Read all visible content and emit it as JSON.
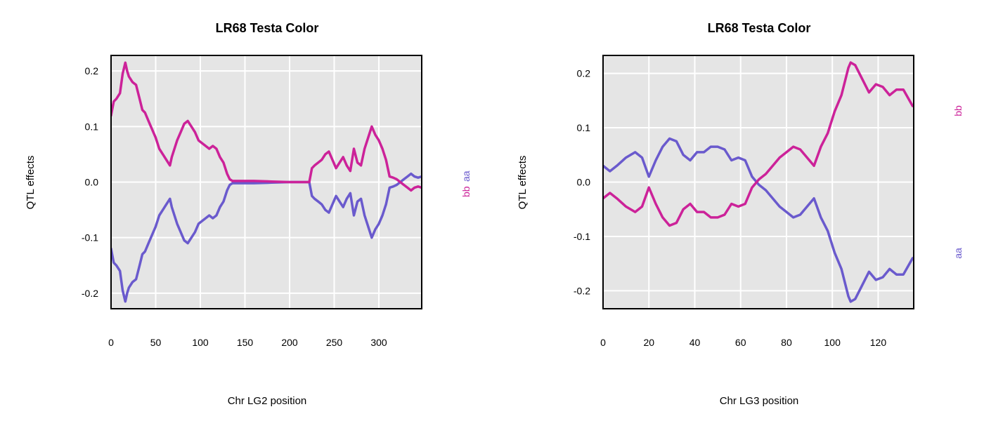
{
  "colors": {
    "bb": "#cc2299",
    "aa": "#6a5acd",
    "panel_bg": "#e5e5e5",
    "grid": "#ffffff"
  },
  "chart_data": [
    {
      "type": "line",
      "title": "LR68 Testa Color",
      "xlabel": "Chr LG2 position",
      "ylabel": "QTL effects",
      "xlim": [
        0,
        348
      ],
      "ylim": [
        -0.228,
        0.228
      ],
      "xticks": [
        0,
        50,
        100,
        150,
        200,
        250,
        300
      ],
      "yticks": [
        -0.2,
        -0.1,
        0.0,
        0.1,
        0.2
      ],
      "xtick_labels": [
        "0",
        "50",
        "100",
        "150",
        "200",
        "250",
        "300"
      ],
      "ytick_labels": [
        "-0.2",
        "-0.1",
        "0.0",
        "0.1",
        "0.2"
      ],
      "grid": true,
      "legend": [
        {
          "label": "bb",
          "color": "#cc2299"
        },
        {
          "label": "aa",
          "color": "#6a5acd"
        }
      ],
      "legend_layout": "stacked",
      "series": [
        {
          "name": "bb",
          "color": "#cc2299",
          "x": [
            0,
            3,
            6,
            10,
            13,
            16,
            18,
            20,
            24,
            28,
            32,
            35,
            38,
            42,
            46,
            50,
            54,
            58,
            62,
            66,
            68,
            71,
            74,
            78,
            82,
            86,
            90,
            94,
            98,
            102,
            106,
            110,
            114,
            118,
            122,
            126,
            130,
            133,
            136,
            140,
            160,
            180,
            200,
            222,
            225,
            228,
            232,
            236,
            240,
            244,
            248,
            252,
            256,
            260,
            264,
            268,
            272,
            276,
            280,
            284,
            288,
            292,
            296,
            300,
            304,
            308,
            312,
            316,
            320,
            324,
            328,
            332,
            336,
            340,
            344,
            348
          ],
          "y": [
            0.12,
            0.145,
            0.15,
            0.16,
            0.195,
            0.215,
            0.2,
            0.19,
            0.18,
            0.175,
            0.15,
            0.13,
            0.125,
            0.11,
            0.095,
            0.08,
            0.06,
            0.05,
            0.04,
            0.03,
            0.045,
            0.06,
            0.075,
            0.09,
            0.105,
            0.11,
            0.1,
            0.09,
            0.075,
            0.07,
            0.065,
            0.06,
            0.065,
            0.06,
            0.045,
            0.035,
            0.015,
            0.005,
            0.002,
            0.002,
            0.002,
            0.001,
            0.0,
            0.0,
            0.025,
            0.03,
            0.035,
            0.04,
            0.05,
            0.055,
            0.04,
            0.025,
            0.035,
            0.045,
            0.03,
            0.02,
            0.06,
            0.035,
            0.03,
            0.06,
            0.08,
            0.1,
            0.085,
            0.075,
            0.06,
            0.04,
            0.01,
            0.008,
            0.005,
            0.0,
            -0.005,
            -0.01,
            -0.015,
            -0.01,
            -0.008,
            -0.01
          ]
        },
        {
          "name": "aa",
          "color": "#6a5acd",
          "x": [
            0,
            3,
            6,
            10,
            13,
            16,
            18,
            20,
            24,
            28,
            32,
            35,
            38,
            42,
            46,
            50,
            54,
            58,
            62,
            66,
            68,
            71,
            74,
            78,
            82,
            86,
            90,
            94,
            98,
            102,
            106,
            110,
            114,
            118,
            122,
            126,
            130,
            133,
            136,
            140,
            160,
            180,
            200,
            222,
            225,
            228,
            232,
            236,
            240,
            244,
            248,
            252,
            256,
            260,
            264,
            268,
            272,
            276,
            280,
            284,
            288,
            292,
            296,
            300,
            304,
            308,
            312,
            316,
            320,
            324,
            328,
            332,
            336,
            340,
            344,
            348
          ],
          "y": [
            -0.12,
            -0.145,
            -0.15,
            -0.16,
            -0.195,
            -0.215,
            -0.2,
            -0.19,
            -0.18,
            -0.175,
            -0.15,
            -0.13,
            -0.125,
            -0.11,
            -0.095,
            -0.08,
            -0.06,
            -0.05,
            -0.04,
            -0.03,
            -0.045,
            -0.06,
            -0.075,
            -0.09,
            -0.105,
            -0.11,
            -0.1,
            -0.09,
            -0.075,
            -0.07,
            -0.065,
            -0.06,
            -0.065,
            -0.06,
            -0.045,
            -0.035,
            -0.015,
            -0.005,
            -0.002,
            -0.002,
            -0.002,
            -0.001,
            0.0,
            0.0,
            -0.025,
            -0.03,
            -0.035,
            -0.04,
            -0.05,
            -0.055,
            -0.04,
            -0.025,
            -0.035,
            -0.045,
            -0.03,
            -0.02,
            -0.06,
            -0.035,
            -0.03,
            -0.06,
            -0.08,
            -0.1,
            -0.085,
            -0.075,
            -0.06,
            -0.04,
            -0.01,
            -0.008,
            -0.005,
            0.0,
            0.005,
            0.01,
            0.015,
            0.01,
            0.008,
            0.01
          ]
        }
      ]
    },
    {
      "type": "line",
      "title": "LR68 Testa Color",
      "xlabel": "Chr LG3 position",
      "ylabel": "QTL effects",
      "xlim": [
        0,
        135.5
      ],
      "ylim": [
        -0.233,
        0.233
      ],
      "xticks": [
        0,
        20,
        40,
        60,
        80,
        100,
        120
      ],
      "yticks": [
        -0.2,
        -0.1,
        0.0,
        0.1,
        0.2
      ],
      "xtick_labels": [
        "0",
        "20",
        "40",
        "60",
        "80",
        "100",
        "120"
      ],
      "ytick_labels": [
        "-0.2",
        "-0.1",
        "0.0",
        "0.1",
        "0.2"
      ],
      "grid": true,
      "legend": [
        {
          "label": "bb",
          "color": "#cc2299"
        },
        {
          "label": "aa",
          "color": "#6a5acd"
        }
      ],
      "legend_layout": "split",
      "series": [
        {
          "name": "bb",
          "color": "#cc2299",
          "x": [
            0,
            3,
            6,
            10,
            14,
            17,
            20,
            23,
            26,
            29,
            32,
            35,
            38,
            41,
            44,
            47,
            50,
            53,
            56,
            59,
            62,
            65,
            68,
            71,
            74,
            77,
            80,
            83,
            86,
            89,
            92,
            95,
            98,
            101,
            104,
            107,
            108,
            110,
            113,
            116,
            119,
            122,
            125,
            128,
            131,
            135
          ],
          "y": [
            -0.03,
            -0.02,
            -0.03,
            -0.045,
            -0.055,
            -0.045,
            -0.01,
            -0.04,
            -0.065,
            -0.08,
            -0.075,
            -0.05,
            -0.04,
            -0.055,
            -0.055,
            -0.065,
            -0.065,
            -0.06,
            -0.04,
            -0.045,
            -0.04,
            -0.01,
            0.005,
            0.015,
            0.03,
            0.045,
            0.055,
            0.065,
            0.06,
            0.045,
            0.03,
            0.065,
            0.09,
            0.13,
            0.16,
            0.21,
            0.22,
            0.215,
            0.19,
            0.165,
            0.18,
            0.175,
            0.16,
            0.17,
            0.17,
            0.14
          ]
        },
        {
          "name": "aa",
          "color": "#6a5acd",
          "x": [
            0,
            3,
            6,
            10,
            14,
            17,
            20,
            23,
            26,
            29,
            32,
            35,
            38,
            41,
            44,
            47,
            50,
            53,
            56,
            59,
            62,
            65,
            68,
            71,
            74,
            77,
            80,
            83,
            86,
            89,
            92,
            95,
            98,
            101,
            104,
            107,
            108,
            110,
            113,
            116,
            119,
            122,
            125,
            128,
            131,
            135
          ],
          "y": [
            0.03,
            0.02,
            0.03,
            0.045,
            0.055,
            0.045,
            0.01,
            0.04,
            0.065,
            0.08,
            0.075,
            0.05,
            0.04,
            0.055,
            0.055,
            0.065,
            0.065,
            0.06,
            0.04,
            0.045,
            0.04,
            0.01,
            -0.005,
            -0.015,
            -0.03,
            -0.045,
            -0.055,
            -0.065,
            -0.06,
            -0.045,
            -0.03,
            -0.065,
            -0.09,
            -0.13,
            -0.16,
            -0.21,
            -0.22,
            -0.215,
            -0.19,
            -0.165,
            -0.18,
            -0.175,
            -0.16,
            -0.17,
            -0.17,
            -0.14
          ]
        }
      ]
    }
  ]
}
